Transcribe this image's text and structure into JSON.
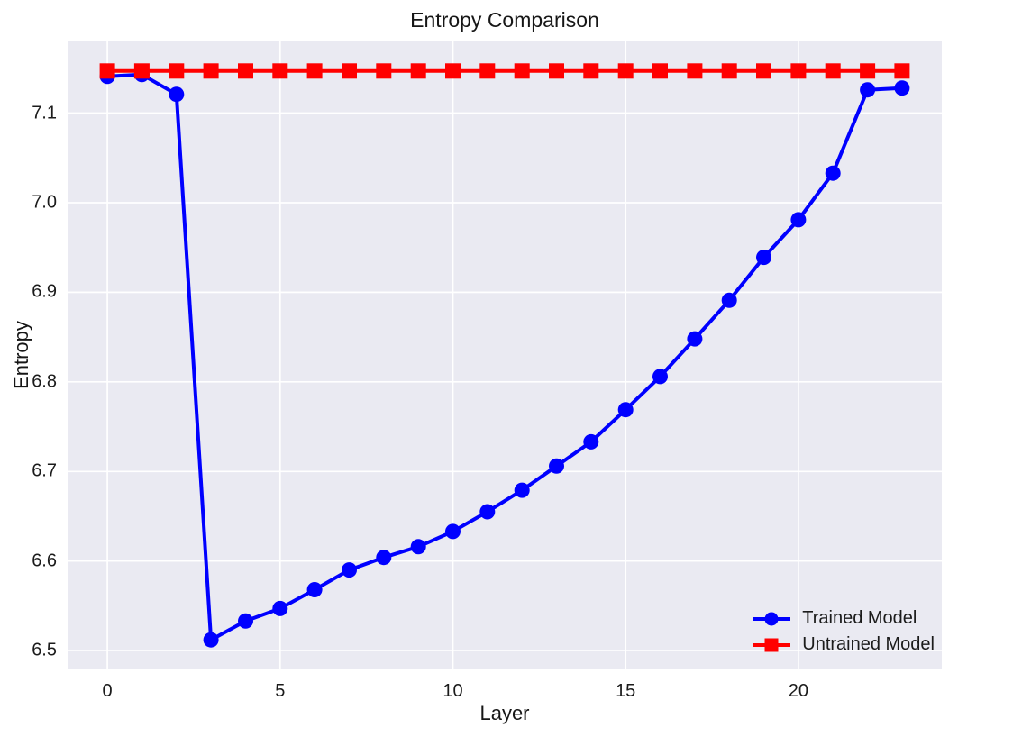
{
  "chart_data": {
    "type": "line",
    "title": "Entropy Comparison",
    "xlabel": "Layer",
    "ylabel": "Entropy",
    "x": [
      0,
      1,
      2,
      3,
      4,
      5,
      6,
      7,
      8,
      9,
      10,
      11,
      12,
      13,
      14,
      15,
      16,
      17,
      18,
      19,
      20,
      21,
      22,
      23
    ],
    "series": [
      {
        "name": "Trained Model",
        "color": "#0000FF",
        "marker": "circle",
        "values": [
          7.141,
          7.143,
          7.121,
          6.512,
          6.533,
          6.547,
          6.568,
          6.59,
          6.604,
          6.616,
          6.633,
          6.655,
          6.679,
          6.706,
          6.733,
          6.769,
          6.806,
          6.848,
          6.891,
          6.939,
          6.981,
          7.033,
          7.126,
          7.128
        ]
      },
      {
        "name": "Untrained Model",
        "color": "#FF0000",
        "marker": "square",
        "values": [
          7.147,
          7.147,
          7.147,
          7.147,
          7.147,
          7.147,
          7.147,
          7.147,
          7.147,
          7.147,
          7.147,
          7.147,
          7.147,
          7.147,
          7.147,
          7.147,
          7.147,
          7.147,
          7.147,
          7.147,
          7.147,
          7.147,
          7.147,
          7.147
        ]
      }
    ],
    "xlim": [
      -1.15,
      24.15
    ],
    "ylim": [
      6.48,
      7.18
    ],
    "xticks": [
      0,
      5,
      10,
      15,
      20
    ],
    "xticklabels": [
      "0",
      "5",
      "10",
      "15",
      "20"
    ],
    "yticks": [
      6.5,
      6.6,
      6.7,
      6.8,
      6.9,
      7.0,
      7.1
    ],
    "yticklabels": [
      "6.5",
      "6.6",
      "6.7",
      "6.8",
      "6.9",
      "7.0",
      "7.1"
    ],
    "grid": true,
    "legend_position": "lower-right",
    "colors": {
      "plot_bg": "#EAEAF2",
      "grid": "#FFFFFF",
      "text": "#1B1B1B"
    }
  }
}
